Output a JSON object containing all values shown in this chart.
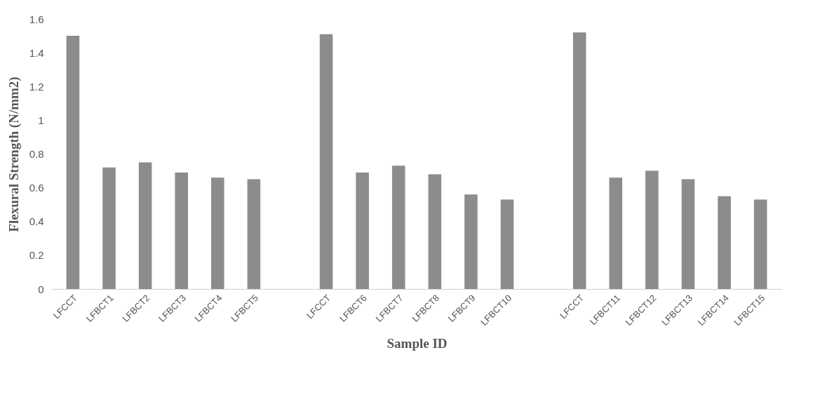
{
  "chart_data": {
    "type": "bar",
    "xlabel": "Sample ID",
    "ylabel": "Flexural Strength (N/mm2)",
    "categories": [
      "LFCCT",
      "LFBCT1",
      "LFBCT2",
      "LFBCT3",
      "LFBCT4",
      "LFBCT5",
      null,
      "LFCCT",
      "LFBCT6",
      "LFBCT7",
      "LFBCT8",
      "LFBCT9",
      "LFBCT10",
      null,
      "LFCCT",
      "LFBCT11",
      "LFBCT12",
      "LFBCT13",
      "LFBCT14",
      "LFBCT15"
    ],
    "values": [
      1.5,
      0.72,
      0.75,
      0.69,
      0.66,
      0.65,
      null,
      1.51,
      0.69,
      0.73,
      0.68,
      0.56,
      0.53,
      null,
      1.52,
      0.66,
      0.7,
      0.65,
      0.55,
      0.53
    ],
    "color": "#8c8c8c",
    "ylim": [
      0,
      1.6
    ],
    "yticks": [
      0,
      0.2,
      0.4,
      0.6,
      0.8,
      1,
      1.2,
      1.4,
      1.6
    ],
    "grid": false
  }
}
